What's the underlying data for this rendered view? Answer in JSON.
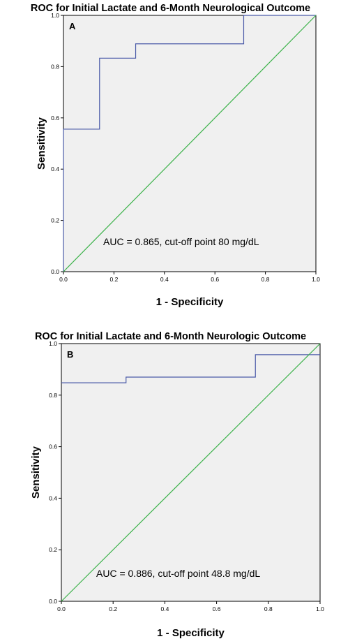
{
  "chart_data": [
    {
      "type": "line",
      "panel": "A",
      "title": "ROC for Initial Lactate and 6-Month Neurological Outcome",
      "xlabel": "1 - Specificity",
      "ylabel": "Sensitivity",
      "xlim": [
        0,
        1
      ],
      "ylim": [
        0,
        1
      ],
      "xticks": [
        "0.0",
        "0.2",
        "0.4",
        "0.6",
        "0.8",
        "1.0"
      ],
      "yticks": [
        "0.0",
        "0.2",
        "0.4",
        "0.6",
        "0.8",
        "1.0"
      ],
      "annotation": "AUC = 0.865, cut-off point 80 mg/dL",
      "grid": false,
      "series": [
        {
          "color": "#4a5aa8",
          "points": [
            [
              0,
              0
            ],
            [
              0,
              0.556
            ],
            [
              0.143,
              0.556
            ],
            [
              0.143,
              0.833
            ],
            [
              0.286,
              0.833
            ],
            [
              0.286,
              0.889
            ],
            [
              0.714,
              0.889
            ],
            [
              0.714,
              1.0
            ],
            [
              1.0,
              1.0
            ]
          ]
        },
        {
          "color": "#3cb24a",
          "points": [
            [
              0,
              0
            ],
            [
              1,
              1
            ]
          ]
        }
      ]
    },
    {
      "type": "line",
      "panel": "B",
      "title": "ROC for Initial Lactate and 6-Month Neurologic Outcome",
      "xlabel": "1 - Specificity",
      "ylabel": "Sensitivity",
      "xlim": [
        0,
        1
      ],
      "ylim": [
        0,
        1
      ],
      "xticks": [
        "0.0",
        "0.2",
        "0.4",
        "0.6",
        "0.8",
        "1.0"
      ],
      "yticks": [
        "0.0",
        "0.2",
        "0.4",
        "0.6",
        "0.8",
        "1.0"
      ],
      "annotation": "AUC = 0.886, cut-off point 48.8 mg/dL",
      "grid": false,
      "series": [
        {
          "color": "#4a5aa8",
          "points": [
            [
              0,
              0.848
            ],
            [
              0.25,
              0.848
            ],
            [
              0.25,
              0.87
            ],
            [
              0.75,
              0.87
            ],
            [
              0.75,
              0.957
            ],
            [
              1.0,
              0.957
            ]
          ]
        },
        {
          "color": "#3cb24a",
          "points": [
            [
              0,
              0
            ],
            [
              1,
              1
            ]
          ]
        }
      ]
    }
  ]
}
